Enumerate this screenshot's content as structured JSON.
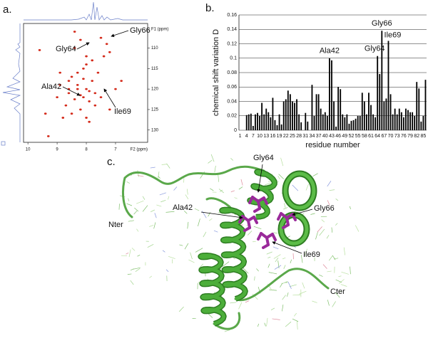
{
  "chart_data": [
    {
      "type": "scatter",
      "panel_label": "a.",
      "x_label": "F2 (ppm)",
      "y_label": "F1 (ppm)",
      "color": "#d42a1a",
      "xlim": [
        10.15,
        5.9
      ],
      "ylim": [
        104,
        133
      ],
      "xticks": [
        10,
        9,
        8,
        7
      ],
      "yticks": [
        110,
        115,
        120,
        125,
        130
      ],
      "x": [
        9.6,
        9.4,
        9.3,
        8.4,
        8.2,
        7.5,
        7.3,
        7.2,
        7.4,
        6.8,
        7.8,
        8.0,
        8.1,
        8.3,
        8.5,
        8.6,
        8.9,
        8.0,
        7.9,
        7.7,
        8.2,
        8.3,
        8.1,
        7.9,
        8.6,
        8.4,
        8.7,
        7.6,
        7.0,
        7.2,
        8.8,
        9.0,
        8.5,
        8.2,
        8.0,
        7.8,
        8.3,
        8.1,
        7.5,
        8.6,
        8.9,
        7.7,
        8.4,
        8.0,
        7.9
      ],
      "y": [
        110.5,
        126,
        131.5,
        106,
        108,
        107.5,
        109,
        111,
        112,
        118,
        113,
        114,
        115,
        116,
        117,
        118,
        119,
        120,
        120.5,
        121,
        121.5,
        120,
        122,
        123,
        121,
        122.5,
        124,
        116,
        120,
        125,
        127,
        122,
        126,
        125,
        127,
        118,
        119,
        117.5,
        122,
        120,
        116,
        124,
        110,
        112,
        128
      ],
      "annotations": [
        "Gly66",
        "Gly64",
        "Ala42",
        "Ile69"
      ]
    },
    {
      "type": "bar",
      "panel_label": "b.",
      "x_label": "residue number",
      "y_label": "chemical shift variation D",
      "color": "#000000",
      "grid": true,
      "ylim": [
        0,
        0.16
      ],
      "yticks": [
        0,
        0.02,
        0.04,
        0.06,
        0.08,
        0.1,
        0.12,
        0.14,
        0.16
      ],
      "categories": [
        1,
        null,
        null,
        4,
        null,
        null,
        7,
        null,
        null,
        10,
        null,
        null,
        13,
        null,
        null,
        16,
        null,
        null,
        19,
        null,
        null,
        22,
        null,
        null,
        25,
        null,
        null,
        28,
        null,
        null,
        31,
        null,
        null,
        34,
        null,
        null,
        37,
        null,
        null,
        40,
        null,
        null,
        43,
        null,
        null,
        46,
        null,
        null,
        49,
        null,
        null,
        52,
        null,
        null,
        55,
        null,
        null,
        58,
        null,
        null,
        61,
        null,
        null,
        64,
        null,
        null,
        67,
        null,
        null,
        70,
        null,
        null,
        73,
        null,
        null,
        76,
        null,
        null,
        79,
        null,
        null,
        82,
        null,
        null,
        85,
        null
      ],
      "values": [
        0,
        0,
        0,
        0.021,
        0.022,
        0.023,
        0.006,
        0.022,
        0.024,
        0.02,
        0.038,
        0.022,
        0.03,
        0.025,
        0.018,
        0.045,
        0.014,
        0.007,
        0.022,
        0.008,
        0.04,
        0.043,
        0.055,
        0.05,
        0.04,
        0.038,
        0.043,
        0.022,
        0.011,
        0,
        0.024,
        0.012,
        0,
        0.063,
        0.02,
        0.05,
        0.05,
        0.03,
        0.022,
        0.025,
        0.02,
        0.1,
        0.097,
        0.04,
        0.005,
        0.06,
        0.057,
        0.022,
        0.018,
        0.022,
        0.009,
        0.013,
        0.014,
        0.016,
        0.02,
        0.02,
        0.052,
        0.04,
        0.022,
        0.052,
        0.035,
        0.022,
        0.018,
        0.103,
        0.078,
        0.138,
        0.04,
        0.044,
        0.124,
        0.05,
        0.022,
        0.03,
        0.022,
        0.03,
        0.025,
        0.018,
        0.03,
        0.028,
        0.025,
        0.025,
        0.02,
        0.067,
        0.058,
        0.012,
        0.02,
        0.07
      ],
      "annotations": [
        {
          "text": "Ala42",
          "x": 42
        },
        {
          "text": "Gly64",
          "x": 64
        },
        {
          "text": "Gly66",
          "x": 66
        },
        {
          "text": "Ile69",
          "x": 69
        }
      ]
    }
  ],
  "structure": {
    "panel_label": "c.",
    "annotations": [
      "Gly64",
      "Ala42",
      "Gly66",
      "Ile69"
    ],
    "termini": [
      "Nter",
      "Cter"
    ]
  }
}
